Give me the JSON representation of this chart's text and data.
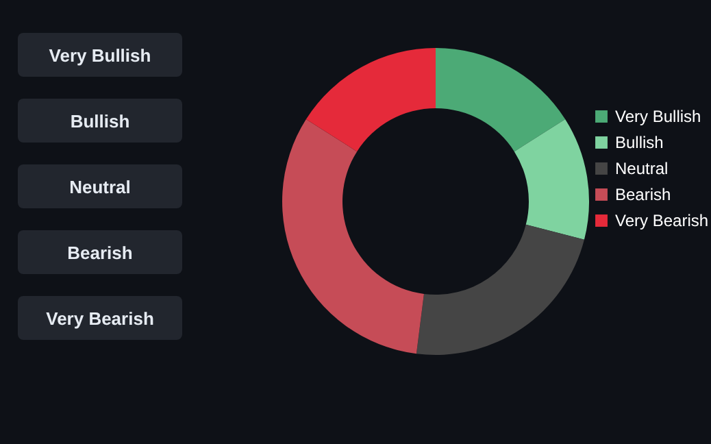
{
  "chart_data": {
    "type": "donut",
    "categories": [
      "Very Bullish",
      "Bullish",
      "Neutral",
      "Bearish",
      "Very Bearish"
    ],
    "values": [
      16,
      13,
      23,
      32,
      16
    ],
    "colors": [
      "#4caa76",
      "#7fd3a0",
      "#454545",
      "#c64c57",
      "#e52a3a"
    ],
    "legend": "right"
  }
}
